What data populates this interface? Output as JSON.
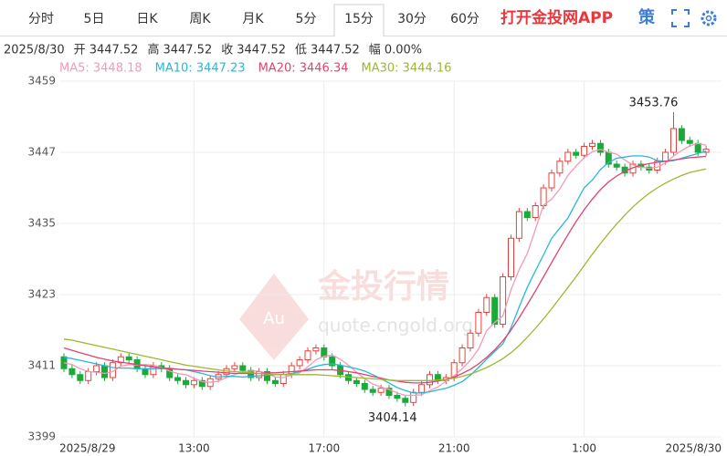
{
  "toolbar": {
    "tabs": [
      "分时",
      "5日",
      "日K",
      "周K",
      "月K",
      "5分",
      "15分",
      "30分",
      "60分"
    ],
    "selected_tab": 6,
    "app_link": "打开金投网APP",
    "strategy": "策"
  },
  "info": {
    "date": "2025/8/30",
    "items": [
      {
        "label": "开",
        "value": "3447.52"
      },
      {
        "label": "高",
        "value": "3447.52"
      },
      {
        "label": "收",
        "value": "3447.52"
      },
      {
        "label": "低",
        "value": "3447.52"
      },
      {
        "label": "幅",
        "value": "0.00%"
      }
    ]
  },
  "watermark": {
    "title": "金投行情",
    "url": "quote.cngold.org",
    "badge": "Au"
  },
  "chart_data": {
    "type": "candlestick",
    "categories": [
      "2025/8/29",
      null,
      null,
      null,
      null,
      null,
      null,
      null,
      null,
      null,
      null,
      null,
      null,
      null,
      null,
      null,
      "13:00",
      null,
      null,
      null,
      null,
      null,
      null,
      null,
      null,
      null,
      null,
      null,
      null,
      null,
      null,
      null,
      "17:00",
      null,
      null,
      null,
      null,
      null,
      null,
      null,
      null,
      null,
      null,
      null,
      null,
      null,
      null,
      null,
      "21:00",
      null,
      null,
      null,
      null,
      null,
      null,
      null,
      null,
      null,
      null,
      null,
      null,
      null,
      null,
      null,
      "1:00",
      null,
      null,
      null,
      null,
      null,
      null,
      null,
      null,
      null,
      null,
      null,
      null,
      null,
      null,
      "2025/8/30"
    ],
    "open": [
      3412.5,
      3410.5,
      3409.5,
      3408.5,
      3410.0,
      3411.0,
      3409.0,
      3411.5,
      3412.5,
      3412.0,
      3410.5,
      3409.5,
      3411.0,
      3410.5,
      3409.0,
      3408.5,
      3407.8,
      3408.5,
      3407.5,
      3408.8,
      3409.5,
      3410.5,
      3411.0,
      3410.2,
      3409.0,
      3410.0,
      3408.5,
      3408.0,
      3409.5,
      3411.0,
      3412.0,
      3413.5,
      3414.0,
      3412.5,
      3411.0,
      3409.5,
      3408.5,
      3408.0,
      3407.0,
      3406.5,
      3407.2,
      3406.0,
      3405.5,
      3404.8,
      3406.5,
      3407.8,
      3409.5,
      3408.5,
      3409.0,
      3411.5,
      3414.0,
      3416.5,
      3420.0,
      3422.5,
      3418.0,
      3426.0,
      3432.5,
      3437.0,
      3436.0,
      3438.0,
      3441.0,
      3443.5,
      3445.5,
      3447.0,
      3446.5,
      3448.0,
      3448.5,
      3447.0,
      3445.0,
      3444.5,
      3443.5,
      3445.0,
      3444.5,
      3444.0,
      3445.5,
      3447.0,
      3451.0,
      3449.0,
      3448.5,
      3447.0
    ],
    "high": [
      3413.1,
      3411.1,
      3410.1,
      3410.6,
      3411.6,
      3411.6,
      3412.1,
      3413.1,
      3413.1,
      3412.6,
      3411.1,
      3411.6,
      3411.6,
      3411.1,
      3409.6,
      3409.1,
      3409.1,
      3409.1,
      3409.4,
      3410.1,
      3411.1,
      3411.6,
      3411.6,
      3410.8,
      3410.6,
      3410.6,
      3409.1,
      3410.1,
      3411.6,
      3412.6,
      3414.1,
      3414.6,
      3414.6,
      3413.1,
      3411.6,
      3410.1,
      3409.1,
      3408.6,
      3407.6,
      3407.8,
      3407.8,
      3406.6,
      3406.1,
      3407.1,
      3408.4,
      3410.1,
      3410.1,
      3409.6,
      3412.1,
      3414.6,
      3417.1,
      3420.6,
      3423.1,
      3423.1,
      3426.6,
      3433.1,
      3437.6,
      3437.6,
      3438.6,
      3441.6,
      3444.1,
      3446.1,
      3447.6,
      3447.6,
      3448.6,
      3449.1,
      3449.1,
      3447.6,
      3445.6,
      3445.1,
      3445.6,
      3445.6,
      3445.1,
      3446.1,
      3447.6,
      3453.76,
      3451.6,
      3449.6,
      3449.1,
      3448.1
    ],
    "low": [
      3409.9,
      3408.9,
      3407.9,
      3407.9,
      3409.4,
      3408.4,
      3408.4,
      3410.9,
      3411.4,
      3409.9,
      3408.9,
      3408.9,
      3409.9,
      3408.4,
      3407.9,
      3407.2,
      3407.2,
      3406.9,
      3406.9,
      3408.2,
      3408.9,
      3409.9,
      3409.6,
      3408.4,
      3408.4,
      3407.9,
      3407.4,
      3407.4,
      3408.9,
      3410.4,
      3411.4,
      3412.9,
      3411.9,
      3410.4,
      3408.9,
      3407.9,
      3407.4,
      3406.4,
      3405.9,
      3405.9,
      3405.4,
      3404.9,
      3404.14,
      3404.2,
      3405.9,
      3407.2,
      3407.9,
      3407.9,
      3408.4,
      3410.9,
      3413.4,
      3415.9,
      3419.4,
      3417.4,
      3417.4,
      3425.4,
      3431.9,
      3435.4,
      3435.4,
      3437.4,
      3440.4,
      3442.9,
      3444.9,
      3445.9,
      3445.9,
      3447.4,
      3446.4,
      3444.4,
      3443.9,
      3442.9,
      3442.9,
      3443.9,
      3443.4,
      3443.4,
      3444.9,
      3446.4,
      3448.4,
      3447.9,
      3446.4,
      3446.4
    ],
    "close": [
      3410.5,
      3409.5,
      3408.5,
      3410.0,
      3411.0,
      3409.0,
      3411.5,
      3412.5,
      3412.0,
      3410.5,
      3409.5,
      3411.0,
      3410.5,
      3409.0,
      3408.5,
      3407.8,
      3408.5,
      3407.5,
      3408.8,
      3409.5,
      3410.5,
      3411.0,
      3410.2,
      3409.0,
      3410.0,
      3408.5,
      3408.0,
      3409.5,
      3411.0,
      3412.0,
      3413.5,
      3414.0,
      3412.5,
      3411.0,
      3409.5,
      3408.5,
      3408.0,
      3407.0,
      3406.5,
      3407.2,
      3406.0,
      3405.5,
      3404.8,
      3406.5,
      3407.8,
      3409.5,
      3408.5,
      3409.0,
      3411.5,
      3414.0,
      3416.5,
      3420.0,
      3422.5,
      3418.0,
      3426.0,
      3432.5,
      3437.0,
      3436.0,
      3438.0,
      3441.0,
      3443.5,
      3445.5,
      3447.0,
      3446.5,
      3448.0,
      3448.5,
      3447.0,
      3445.0,
      3444.5,
      3443.5,
      3445.0,
      3444.5,
      3444.0,
      3445.5,
      3447.0,
      3451.0,
      3449.0,
      3448.5,
      3447.0,
      3447.52
    ],
    "up_color": "#e8413c",
    "down_color": "#1aaa3a",
    "ylim": [
      3399,
      3459
    ],
    "yticks": [
      3459,
      3447,
      3435,
      3423,
      3411,
      3399
    ],
    "grid": true,
    "ma_series": [
      {
        "label": "MA5: 3448.18",
        "color": "#f39ab6",
        "values": [
          3411.5,
          3411.2,
          3410.5,
          3410.0,
          3409.9,
          3409.7,
          3410.0,
          3410.9,
          3411.2,
          3411.1,
          3411.2,
          3411.1,
          3410.7,
          3410.1,
          3409.7,
          3409.5,
          3408.9,
          3408.3,
          3408.2,
          3408.4,
          3409.0,
          3409.5,
          3410.0,
          3410.1,
          3410.1,
          3409.7,
          3409.1,
          3409.0,
          3409.4,
          3409.8,
          3410.8,
          3412.0,
          3412.6,
          3412.8,
          3412.1,
          3411.1,
          3409.9,
          3408.8,
          3407.9,
          3407.4,
          3407.0,
          3406.4,
          3406.0,
          3406.0,
          3406.1,
          3406.8,
          3407.4,
          3408.4,
          3409.3,
          3410.5,
          3411.9,
          3413.8,
          3416.9,
          3418.3,
          3419.4,
          3423.8,
          3427.2,
          3429.9,
          3434.0,
          3438.1,
          3439.1,
          3440.8,
          3443.1,
          3444.7,
          3446.1,
          3447.1,
          3447.5,
          3447.0,
          3446.7,
          3445.7,
          3444.9,
          3444.5,
          3444.3,
          3444.5,
          3445.2,
          3446.4,
          3447.3,
          3448.1,
          3448.5,
          3448.2
        ]
      },
      {
        "label": "MA10: 3447.23",
        "color": "#26b9d6",
        "values": [
          3412.4,
          3412.2,
          3411.9,
          3411.6,
          3411.3,
          3411.0,
          3410.7,
          3410.6,
          3410.6,
          3410.5,
          3410.5,
          3410.5,
          3410.6,
          3410.6,
          3410.4,
          3410.3,
          3410.0,
          3409.7,
          3409.3,
          3409.1,
          3409.2,
          3409.2,
          3409.1,
          3409.2,
          3409.3,
          3409.4,
          3409.5,
          3409.5,
          3409.7,
          3410.0,
          3410.4,
          3410.9,
          3411.2,
          3411.3,
          3411.1,
          3410.8,
          3410.5,
          3410.1,
          3409.5,
          3408.8,
          3408.1,
          3407.3,
          3406.8,
          3406.4,
          3406.4,
          3406.6,
          3406.9,
          3407.2,
          3407.7,
          3408.3,
          3409.4,
          3410.7,
          3412.1,
          3413.4,
          3414.7,
          3417.4,
          3420.9,
          3424.2,
          3427.0,
          3429.7,
          3432.5,
          3434.2,
          3435.9,
          3438.5,
          3441.0,
          3442.3,
          3444.1,
          3445.3,
          3446.0,
          3446.2,
          3446.4,
          3446.4,
          3446.2,
          3445.6,
          3445.5,
          3445.6,
          3446.0,
          3446.4,
          3446.8,
          3447.2
        ]
      },
      {
        "label": "MA20: 3446.34",
        "color": "#e4416f",
        "values": [
          3414.0,
          3413.6,
          3413.2,
          3412.8,
          3412.4,
          3412.1,
          3411.8,
          3411.6,
          3411.4,
          3411.2,
          3411.0,
          3410.8,
          3410.6,
          3410.5,
          3410.4,
          3410.3,
          3410.2,
          3410.1,
          3410.0,
          3409.9,
          3409.8,
          3409.7,
          3409.7,
          3409.7,
          3409.7,
          3409.8,
          3409.8,
          3409.9,
          3410.0,
          3410.1,
          3410.2,
          3410.3,
          3410.3,
          3410.3,
          3410.2,
          3410.0,
          3409.8,
          3409.5,
          3409.2,
          3408.9,
          3408.6,
          3408.4,
          3408.2,
          3408.1,
          3408.1,
          3408.2,
          3408.4,
          3408.7,
          3409.1,
          3409.7,
          3410.4,
          3411.3,
          3412.4,
          3413.7,
          3415.2,
          3417.0,
          3419.1,
          3421.3,
          3423.6,
          3426.0,
          3428.4,
          3430.8,
          3433.1,
          3435.3,
          3437.3,
          3439.1,
          3440.7,
          3442.0,
          3443.0,
          3443.8,
          3444.4,
          3444.8,
          3445.1,
          3445.3,
          3445.5,
          3445.7,
          3445.9,
          3446.1,
          3446.2,
          3446.3
        ]
      },
      {
        "label": "MA30: 3444.16",
        "color": "#9cb832",
        "values": [
          3415.5,
          3415.3,
          3415.0,
          3414.7,
          3414.4,
          3414.1,
          3413.8,
          3413.5,
          3413.2,
          3412.9,
          3412.6,
          3412.3,
          3412.0,
          3411.7,
          3411.4,
          3411.1,
          3410.9,
          3410.7,
          3410.5,
          3410.3,
          3410.1,
          3410.0,
          3409.9,
          3409.8,
          3409.7,
          3409.6,
          3409.5,
          3409.5,
          3409.5,
          3409.5,
          3409.5,
          3409.5,
          3409.4,
          3409.3,
          3409.2,
          3409.1,
          3409.0,
          3408.9,
          3408.8,
          3408.7,
          3408.6,
          3408.5,
          3408.5,
          3408.5,
          3408.5,
          3408.5,
          3408.6,
          3408.7,
          3408.9,
          3409.2,
          3409.6,
          3410.1,
          3410.7,
          3411.4,
          3412.2,
          3413.2,
          3414.4,
          3415.8,
          3417.3,
          3418.9,
          3420.6,
          3422.4,
          3424.2,
          3426.0,
          3427.9,
          3429.8,
          3431.6,
          3433.3,
          3434.9,
          3436.4,
          3437.8,
          3439.0,
          3440.1,
          3441.0,
          3441.8,
          3442.5,
          3443.1,
          3443.6,
          3443.9,
          3444.2
        ]
      }
    ]
  }
}
